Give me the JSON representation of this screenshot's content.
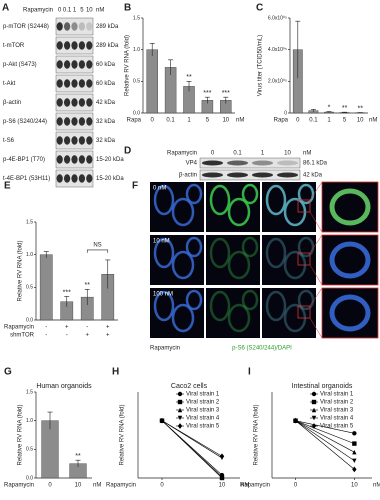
{
  "chart_data": [
    {
      "panel": "B",
      "type": "bar",
      "y_label": "Relative RV RNA (fold)",
      "x_label": "Rapa",
      "x_unit": "nM",
      "categories": [
        "0",
        "0.1",
        "1",
        "5",
        "10"
      ],
      "values": [
        1.0,
        0.72,
        0.42,
        0.2,
        0.2
      ],
      "errors": [
        0.1,
        0.12,
        0.08,
        0.05,
        0.05
      ],
      "annotations": [
        null,
        null,
        "**",
        "***",
        "***"
      ],
      "color": "#8c8c8c",
      "ylim": [
        0,
        1.5
      ],
      "yticks": [
        {
          "value": 0,
          "label": "0.0"
        },
        {
          "value": 0.5,
          "label": "0.5"
        },
        {
          "value": 1,
          "label": "1.0"
        },
        {
          "value": 1.5,
          "label": "1.5"
        }
      ]
    },
    {
      "panel": "C",
      "type": "bar",
      "y_label": "Virus titer (TCID50/mL)",
      "x_label": "Rapa",
      "x_unit": "nM",
      "categories": [
        "0",
        "0.1",
        "1",
        "5",
        "10"
      ],
      "values": [
        400000,
        15000,
        6000,
        3000,
        2000
      ],
      "errors": [
        180000,
        8000,
        3000,
        2000,
        1000
      ],
      "annotations": [
        null,
        null,
        "*",
        "**",
        "**"
      ],
      "color": "#8c8c8c",
      "ylim": [
        0,
        600000
      ],
      "yticks": [
        0,
        {
          "value": 200000,
          "label": "2.0x10⁰⁵"
        },
        {
          "value": 400000,
          "label": "4.0x10⁰⁵"
        },
        {
          "value": 600000,
          "label": "6.0x10⁰⁵"
        }
      ]
    },
    {
      "panel": "E",
      "type": "bar",
      "y_label": "Relative RV RNA (fold)",
      "rows": [
        {
          "label": "Rapamycin",
          "marks": [
            "-",
            "+",
            "-",
            "+"
          ]
        },
        {
          "label": "shmTOR",
          "marks": [
            "-",
            "-",
            "+",
            "+"
          ]
        }
      ],
      "values": [
        1.0,
        0.28,
        0.35,
        0.7
      ],
      "errors": [
        0.05,
        0.08,
        0.12,
        0.22
      ],
      "annotations": [
        null,
        "***",
        "**",
        null
      ],
      "bracket": "NS",
      "color": "#8c8c8c",
      "ylim": [
        0,
        1.5
      ],
      "yticks": [
        {
          "value": 0,
          "label": "0.0"
        },
        {
          "value": 0.5,
          "label": "0.5"
        },
        {
          "value": 1,
          "label": "1.0"
        },
        {
          "value": 1.5,
          "label": "1.5"
        }
      ]
    },
    {
      "panel": "G",
      "type": "bar",
      "title": "Human organoids",
      "y_label": "Relative RV RNA (fold)",
      "x_label": "Rapamycin",
      "x_unit": "nM",
      "categories": [
        "0",
        "10"
      ],
      "values": [
        1.0,
        0.25
      ],
      "errors": [
        0.15,
        0.06
      ],
      "annotations": [
        null,
        "**"
      ],
      "color": "#8c8c8c",
      "ylim": [
        0,
        1.5
      ],
      "yticks": [
        {
          "value": 0,
          "label": "0.0"
        },
        {
          "value": 0.5,
          "label": "0.5"
        },
        {
          "value": 1,
          "label": "1.0"
        },
        {
          "value": 1.5,
          "label": "1.5"
        }
      ]
    },
    {
      "panel": "H",
      "type": "line",
      "title": "Caco2 cells",
      "y_label": "Relative RV RNA (fold)",
      "x_label": "Rapamycin",
      "x_unit": "nM",
      "x": [
        0,
        10
      ],
      "xticks": [
        0,
        10
      ],
      "xlim": [
        -4,
        13
      ],
      "ylim": [
        0,
        1.5
      ],
      "color": "#000000",
      "series": [
        {
          "name": "Viral strain 1",
          "marker": "circle",
          "values": [
            1.0,
            0.05
          ]
        },
        {
          "name": "Viral strain 2",
          "marker": "square",
          "values": [
            1.0,
            0.0
          ]
        },
        {
          "name": "Viral strain 3",
          "marker": "triangle",
          "values": [
            1.0,
            0.02
          ]
        },
        {
          "name": "Viral strain 4",
          "marker": "triangle-down",
          "values": [
            1.0,
            0.35
          ]
        },
        {
          "name": "Viral strain 5",
          "marker": "diamond",
          "values": [
            1.0,
            0.38
          ]
        }
      ]
    },
    {
      "panel": "I",
      "type": "line",
      "title": "Intestinal organoids",
      "y_label": "Relative RV RNA (fold)",
      "x_label": "Rapamycin",
      "x_unit": "nM",
      "x": [
        0,
        10
      ],
      "xticks": [
        0,
        10
      ],
      "xlim": [
        -4,
        13
      ],
      "ylim": [
        0,
        1.5
      ],
      "color": "#000000",
      "series": [
        {
          "name": "Viral strain 1",
          "marker": "circle",
          "values": [
            1.0,
            0.78
          ]
        },
        {
          "name": "Viral strain 2",
          "marker": "square",
          "values": [
            1.0,
            0.6
          ]
        },
        {
          "name": "Viral strain 3",
          "marker": "triangle",
          "values": [
            1.0,
            0.45
          ]
        },
        {
          "name": "Viral strain 4",
          "marker": "triangle-down",
          "values": [
            1.0,
            0.3
          ]
        },
        {
          "name": "Viral strain 5",
          "marker": "diamond",
          "values": [
            1.0,
            0.15
          ]
        }
      ]
    }
  ],
  "blot_a": {
    "panel": "A",
    "treatment": "Rapamycin",
    "doses": [
      "0",
      "0.1",
      "1",
      "5",
      "10"
    ],
    "unit": "nM",
    "rows": [
      {
        "label": "p-mTOR (S2448)",
        "size": "289 kDa"
      },
      {
        "label": "t-mTOR",
        "size": "289 kDa"
      },
      {
        "label": "p-Akt (S473)",
        "size": "60 kDa"
      },
      {
        "label": "t-Akt",
        "size": "60 kDa"
      },
      {
        "label": "β-actin",
        "size": "42 kDa"
      },
      {
        "label": "p-S6 (S240/244)",
        "size": "32 kDa"
      },
      {
        "label": "t-S6",
        "size": "32 kDa"
      },
      {
        "label": "p-4E-BP1 (T70)",
        "size": "15-20 kDa"
      },
      {
        "label": "t-4E-BP1 (53H11)",
        "size": "15-20 kDa"
      }
    ]
  },
  "blot_d": {
    "panel": "D",
    "treatment": "Rapamycin",
    "doses": [
      "0",
      "0.1",
      "1",
      "10"
    ],
    "unit": "nM",
    "rows": [
      {
        "label": "VP4",
        "size": "86.1 kDa"
      },
      {
        "label": "β-actin",
        "size": "42 kDa"
      }
    ]
  },
  "imaging_f": {
    "panel": "F",
    "doses": [
      "0 nM",
      "10 nM",
      "100 nM"
    ],
    "treatment": "Rapamycin",
    "stain": "p-S6 (S240/244)/DAPI"
  }
}
